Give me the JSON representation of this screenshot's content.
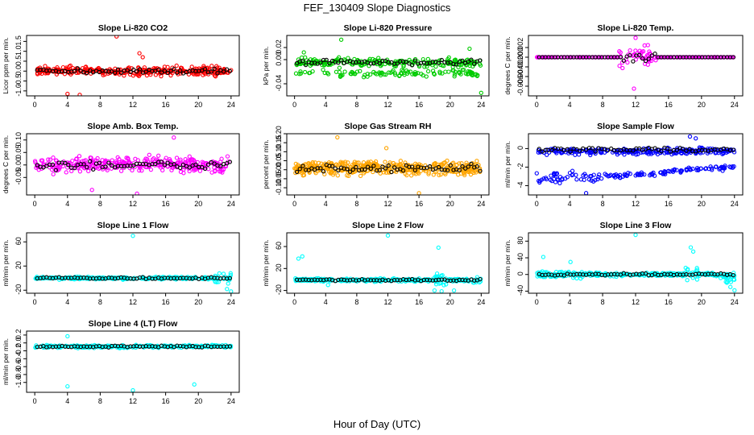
{
  "title": "FEF_130409  Slope Diagnostics",
  "xlabel": "Hour of Day (UTC)",
  "x_ticks": [
    0,
    4,
    8,
    12,
    16,
    20,
    24
  ],
  "xlim": [
    -1,
    25
  ],
  "chart_data": [
    {
      "type": "scatter",
      "title": "Slope Li-820 CO2",
      "ylabel": "Licor ppm per min.",
      "ylim": [
        -1.25,
        1.8
      ],
      "y_ticks": [
        -1.0,
        -0.5,
        0.0,
        0.5,
        1.0,
        1.5
      ],
      "y_tick_labels": [
        "-1.0",
        "-0.5",
        "0.0",
        "0.5",
        "1.0",
        "1.5"
      ],
      "color": "#ff0000",
      "profile": "flat",
      "n": 320,
      "base": 0.0,
      "spread": 0.3,
      "outliers": [
        [
          10,
          1.75
        ],
        [
          4,
          -1.15
        ],
        [
          5.5,
          -1.2
        ],
        [
          12.8,
          0.9
        ],
        [
          13.2,
          0.7
        ]
      ]
    },
    {
      "type": "scatter",
      "title": "Slope Li-820 Pressure",
      "ylabel": "kPa per min.",
      "ylim": [
        -0.06,
        0.04
      ],
      "y_ticks": [
        -0.04,
        0.0,
        0.02
      ],
      "y_tick_labels": [
        "-0.04",
        "0.00",
        "0.02"
      ],
      "color": "#00cc00",
      "profile": "pressure",
      "n": 320,
      "base": -0.005,
      "spread": 0.01,
      "outliers": [
        [
          6,
          0.033
        ],
        [
          22.5,
          0.018
        ],
        [
          24,
          -0.055
        ],
        [
          1.2,
          0.012
        ]
      ]
    },
    {
      "type": "scatter",
      "title": "Slope Li-820 Temp.",
      "ylabel": "degrees C per min.",
      "ylim": [
        -0.008,
        0.0045
      ],
      "y_ticks": [
        -0.006,
        -0.004,
        -0.002,
        0.0,
        0.002
      ],
      "y_tick_labels": [
        "-0.006",
        "-0.004",
        "-0.002",
        "0.000",
        "0.002"
      ],
      "color": "#ff00ff",
      "profile": "temp",
      "n": 220,
      "base": 0.0,
      "spread": 0.0,
      "outliers": [
        [
          12,
          0.004
        ],
        [
          11.8,
          -0.0065
        ],
        [
          13.5,
          0.0025
        ]
      ]
    },
    {
      "type": "scatter",
      "title": "Slope Amb. Box Temp.",
      "ylabel": "degrees C per min.",
      "ylim": [
        -0.12,
        0.125
      ],
      "y_ticks": [
        -0.05,
        0.0,
        0.05,
        0.1
      ],
      "y_tick_labels": [
        "-0.05",
        "0.00",
        "0.05",
        "0.10"
      ],
      "color": "#ff00ff",
      "profile": "flat",
      "n": 300,
      "base": 0.0,
      "spread": 0.045,
      "outliers": [
        [
          12.5,
          -0.115
        ],
        [
          7,
          -0.1
        ],
        [
          17,
          0.11
        ]
      ]
    },
    {
      "type": "scatter",
      "title": "Slope Gas Stream RH",
      "ylabel": "percent per min.",
      "ylim": [
        -0.14,
        0.2
      ],
      "y_ticks": [
        -0.1,
        -0.05,
        0.0,
        0.05,
        0.1,
        0.15,
        0.2
      ],
      "y_tick_labels": [
        "-0.10",
        "-0.05",
        "0.00",
        "0.05",
        "0.10",
        "0.15",
        "0.20"
      ],
      "color": "#ffa500",
      "profile": "flat",
      "n": 420,
      "base": 0.01,
      "spread": 0.055,
      "outliers": [
        [
          5.5,
          0.18
        ],
        [
          16,
          -0.13
        ],
        [
          11.8,
          0.12
        ]
      ]
    },
    {
      "type": "scatter",
      "title": "Slope Sample Flow",
      "ylabel": "ml/min per min.",
      "ylim": [
        -5,
        1.6
      ],
      "y_ticks": [
        -4,
        -2,
        0
      ],
      "y_tick_labels": [
        "-4",
        "-2",
        "0"
      ],
      "color": "#0000ff",
      "profile": "sampleflow",
      "n": 380,
      "base": -0.3,
      "spread": 0.5,
      "outliers": [
        [
          6,
          -4.8
        ],
        [
          19.3,
          1.1
        ],
        [
          18.6,
          1.3
        ]
      ]
    },
    {
      "type": "scatter",
      "title": "Slope Line 1 Flow",
      "ylabel": "ml/min per min.",
      "ylim": [
        -25,
        75
      ],
      "y_ticks": [
        -20,
        20,
        60
      ],
      "y_tick_labels": [
        "-20",
        "20",
        "60"
      ],
      "color": "#00ffff",
      "profile": "line1",
      "n": 300,
      "base": 0.0,
      "spread": 3,
      "outliers": [
        [
          12,
          70
        ],
        [
          23.5,
          -18
        ],
        [
          24,
          -22
        ]
      ]
    },
    {
      "type": "scatter",
      "title": "Slope Line 2 Flow",
      "ylabel": "ml/min per min.",
      "ylim": [
        -25,
        85
      ],
      "y_ticks": [
        -20,
        20,
        60
      ],
      "y_tick_labels": [
        "-20",
        "20",
        "60"
      ],
      "color": "#00ffff",
      "profile": "line2",
      "n": 300,
      "base": -1,
      "spread": 4,
      "outliers": [
        [
          12,
          80
        ],
        [
          18.5,
          58
        ],
        [
          18,
          -20
        ],
        [
          0.5,
          38
        ],
        [
          1,
          42
        ],
        [
          4.3,
          -10
        ],
        [
          20.5,
          -20
        ]
      ]
    },
    {
      "type": "scatter",
      "title": "Slope Line 3 Flow",
      "ylabel": "ml/min per min.",
      "ylim": [
        -45,
        100
      ],
      "y_ticks": [
        -40,
        0,
        40,
        80
      ],
      "y_tick_labels": [
        "-40",
        "0",
        "40",
        "80"
      ],
      "color": "#00ffff",
      "profile": "line3",
      "n": 320,
      "base": 0.0,
      "spread": 6,
      "outliers": [
        [
          12,
          95
        ],
        [
          18.7,
          65
        ],
        [
          19,
          55
        ],
        [
          0.8,
          42
        ],
        [
          24,
          -38
        ],
        [
          23.5,
          -30
        ],
        [
          4.1,
          30
        ]
      ]
    },
    {
      "type": "scatter",
      "title": "Slope Line 4 (LT) Flow",
      "ylabel": "ml/min per min.",
      "ylim": [
        -1.25,
        0.3
      ],
      "y_ticks": [
        -1.0,
        -0.8,
        -0.6,
        -0.4,
        -0.2,
        0.0,
        0.2
      ],
      "y_tick_labels": [
        "-1.0",
        "-0.8",
        "-0.6",
        "-0.4",
        "-0.2",
        "0.0",
        "0.2"
      ],
      "color": "#00ffff",
      "profile": "flat",
      "n": 260,
      "base": -0.09,
      "spread": 0.05,
      "outliers": [
        [
          4,
          -1.1
        ],
        [
          12,
          -1.2
        ],
        [
          19.5,
          -1.05
        ],
        [
          4,
          0.17
        ]
      ]
    }
  ]
}
